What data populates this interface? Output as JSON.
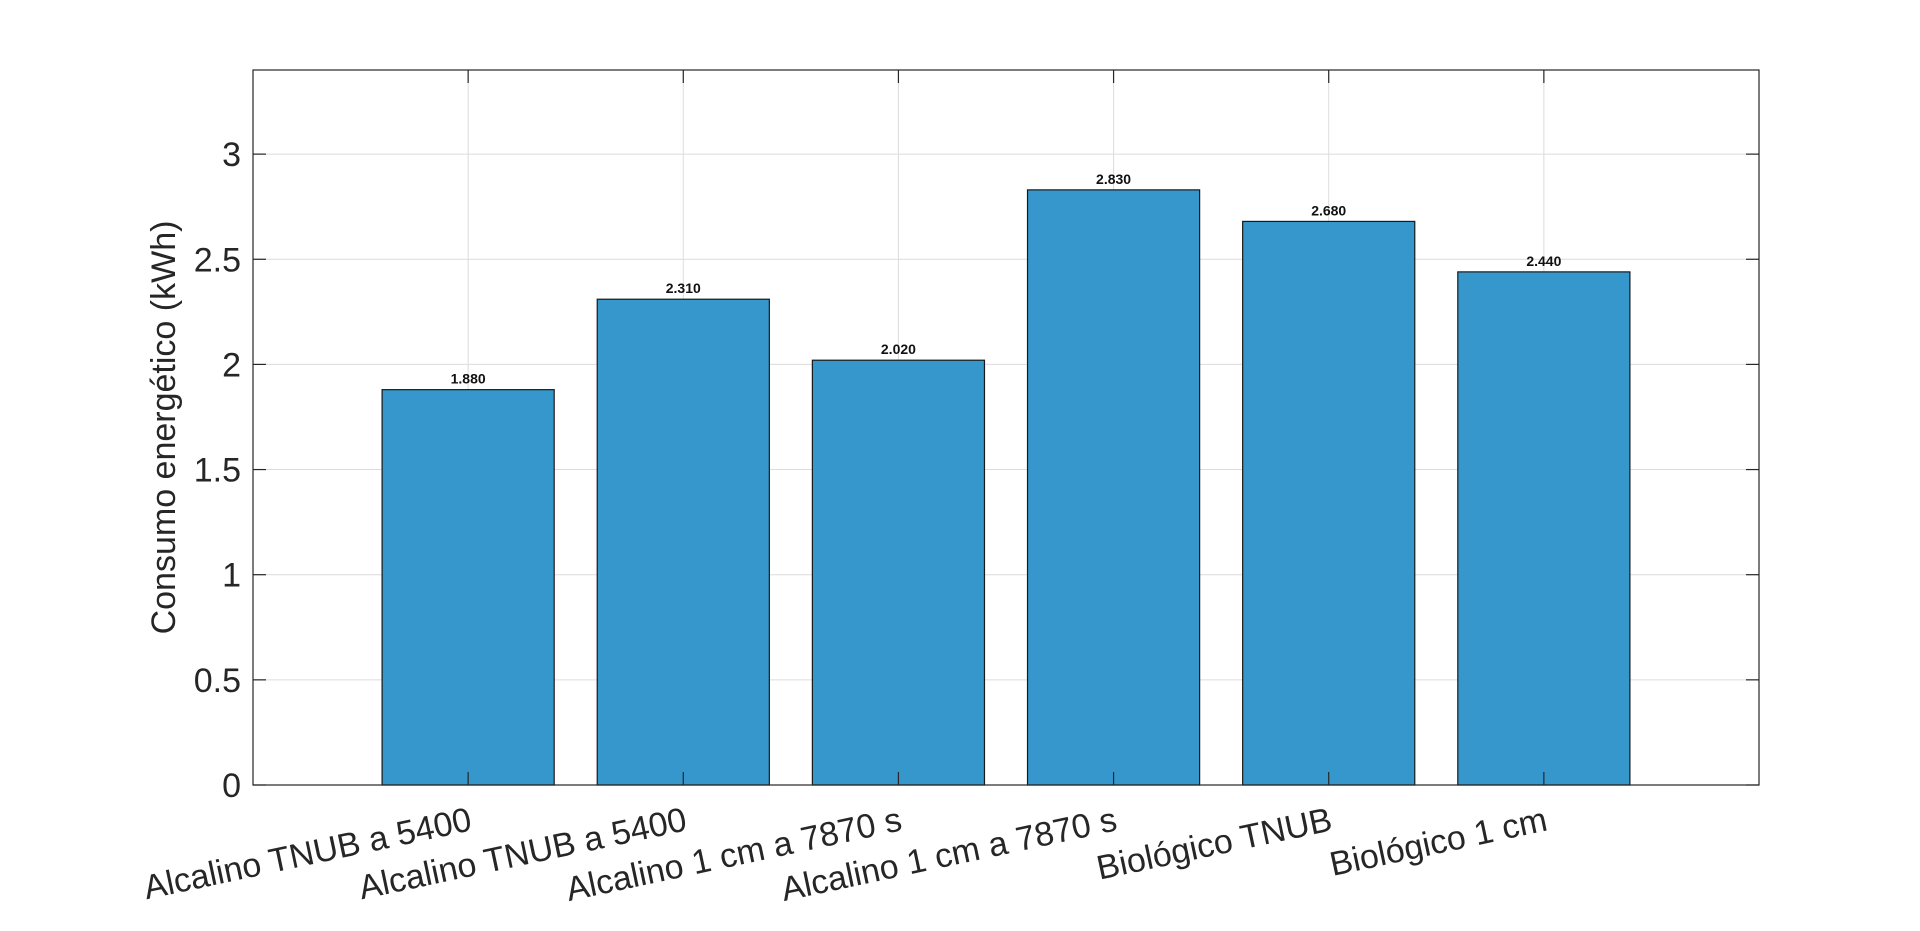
{
  "chart_data": {
    "type": "bar",
    "categories": [
      "Alcalino TNUB a 5400",
      "Alcalino TNUB a 5400",
      "Alcalino 1 cm a 7870 s",
      "Alcalino 1 cm a 7870 s",
      "Biológico TNUB",
      "Biológico 1 cm"
    ],
    "values": [
      1.88,
      2.31,
      2.02,
      2.83,
      2.68,
      2.44
    ],
    "data_labels": [
      "1.880",
      "2.310",
      "2.020",
      "2.830",
      "2.680",
      "2.440"
    ],
    "title": "",
    "xlabel": "",
    "ylabel": "Consumo energético (kWh)",
    "ylim": [
      0,
      3.4
    ],
    "yticks": [
      0,
      0.5,
      1,
      1.5,
      2,
      2.5,
      3
    ],
    "ytick_labels": [
      "0",
      "0.5",
      "1",
      "1.5",
      "2",
      "2.5",
      "3"
    ],
    "grid": true,
    "legend": "none",
    "colors": {
      "bar_fill": "#3597cc",
      "bar_edge": "#1a1a1a",
      "grid": "#dcdcdc",
      "axis": "#262626",
      "text": "#262626"
    }
  }
}
